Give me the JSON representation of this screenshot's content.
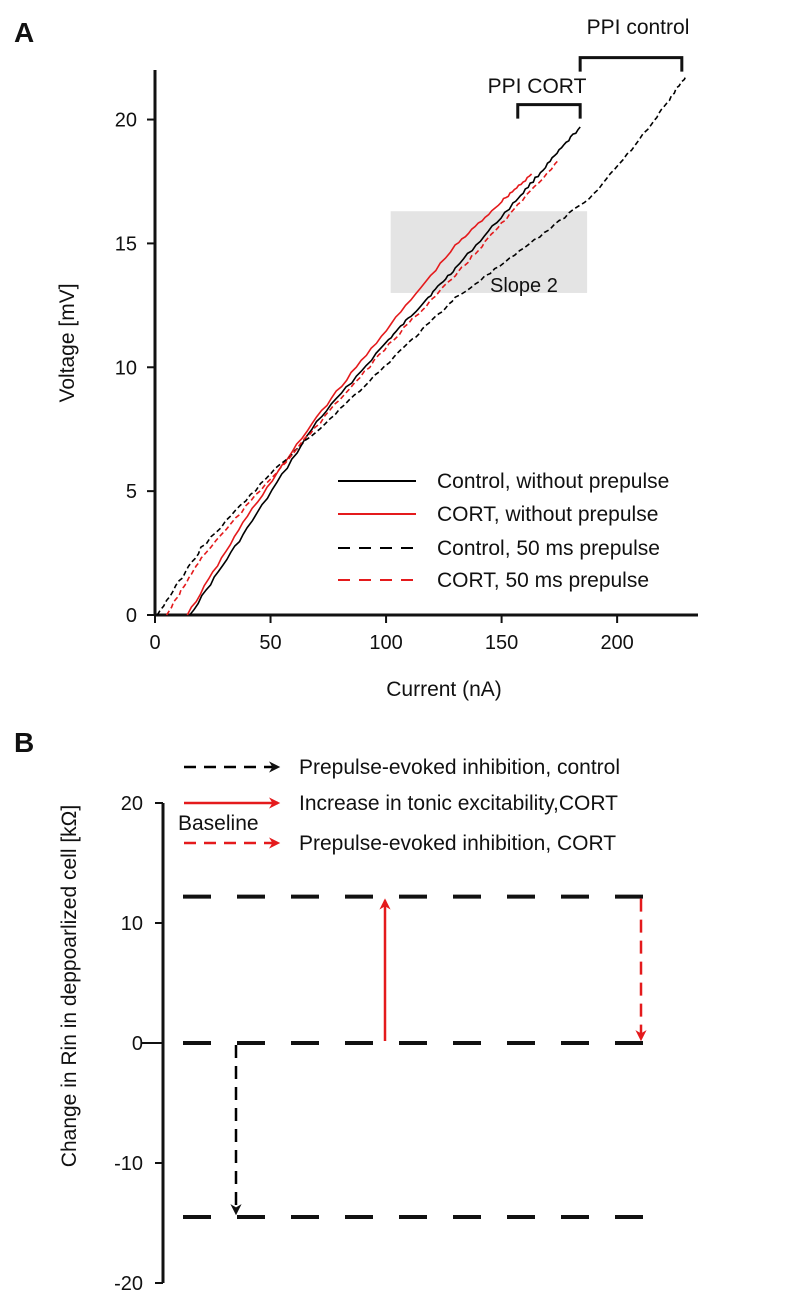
{
  "chart_data": [
    {
      "panel": "A",
      "type": "line",
      "xlabel": "Current (nA)",
      "ylabel": "Voltage [mV]",
      "xlim": [
        0,
        235
      ],
      "ylim": [
        0,
        22
      ],
      "xticks": [
        "0",
        "50",
        "100",
        "150",
        "200"
      ],
      "yticks": [
        "0",
        "5",
        "10",
        "15",
        "20"
      ],
      "series": [
        {
          "name": "Control, without prepulse",
          "color": "#000000",
          "dash": "solid",
          "x": [
            15,
            40,
            70,
            100,
            115,
            130,
            155,
            170,
            184
          ],
          "y": [
            0,
            3.5,
            7.8,
            11.0,
            12.5,
            14.0,
            16.6,
            18.2,
            19.7
          ]
        },
        {
          "name": "CORT, without prepulse",
          "color": "#e41a1c",
          "dash": "solid",
          "x": [
            14,
            40,
            70,
            100,
            130,
            150,
            163
          ],
          "y": [
            0,
            4.0,
            8.0,
            11.5,
            14.9,
            16.7,
            17.8
          ]
        },
        {
          "name": "Control, 50 ms prepulse",
          "color": "#000000",
          "dash": "dashed",
          "x": [
            1,
            20,
            50,
            80,
            110,
            130,
            160,
            190,
            215,
            230
          ],
          "y": [
            0,
            2.7,
            5.7,
            8.3,
            11.0,
            12.8,
            14.8,
            17.0,
            19.8,
            21.8
          ]
        },
        {
          "name": "CORT, 50 ms prepulse",
          "color": "#e41a1c",
          "dash": "dashed",
          "x": [
            5,
            20,
            50,
            80,
            110,
            130,
            150,
            175
          ],
          "y": [
            0,
            2.3,
            5.5,
            8.7,
            11.8,
            13.7,
            15.8,
            18.4
          ]
        }
      ],
      "shaded_region": {
        "x": [
          102,
          187
        ],
        "y": [
          13,
          16.3
        ],
        "label": "Slope 2"
      },
      "brackets": [
        {
          "label": "PPI CORT",
          "x": [
            157,
            184
          ],
          "y": 20.6
        },
        {
          "label": "PPI control",
          "x": [
            184,
            228
          ],
          "y": 22.5
        }
      ]
    },
    {
      "panel": "B",
      "type": "diagram",
      "ylabel": "Change in Rin in deppoarlized cell [kΩ]",
      "ylim": [
        -20,
        20
      ],
      "yticks": [
        "20",
        "10",
        "0",
        "-10",
        "-20"
      ],
      "levels": [
        12.2,
        0,
        -14.5
      ],
      "baseline_label": "Baseline",
      "legend": [
        {
          "label": "Prepulse-evoked inhibition, control",
          "color": "#000000",
          "dash": "dashed"
        },
        {
          "label": "Increase in tonic excitability,CORT",
          "color": "#e41a1c",
          "dash": "solid"
        },
        {
          "label": "Prepulse-evoked inhibition, CORT",
          "color": "#e41a1c",
          "dash": "dashed"
        }
      ],
      "arrows": [
        {
          "name": "control-inhibition",
          "from": 0,
          "to": -14.5,
          "color": "#000000",
          "dash": "dashed"
        },
        {
          "name": "cort-excitability",
          "from": 0,
          "to": 12.2,
          "color": "#e41a1c",
          "dash": "solid"
        },
        {
          "name": "cort-inhibition",
          "from": 12.2,
          "to": 0,
          "color": "#e41a1c",
          "dash": "dashed"
        }
      ]
    }
  ]
}
